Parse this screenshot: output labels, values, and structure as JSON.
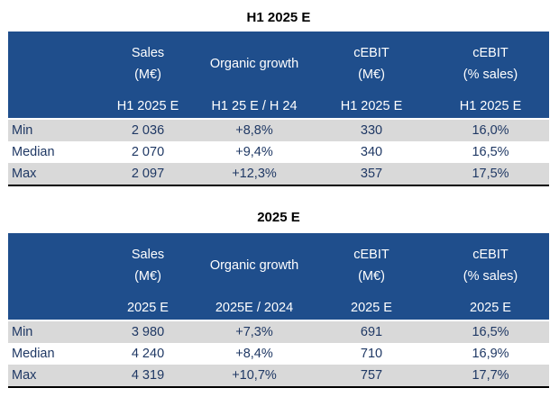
{
  "tables": [
    {
      "title": "H1 2025 E",
      "headers": {
        "sales_line1": "Sales",
        "sales_line2": "(M€)",
        "growth": "Organic growth",
        "cebit_line1": "cEBIT",
        "cebit_line2": "(M€)",
        "cebit_pct_line1": "cEBIT",
        "cebit_pct_line2": "(% sales)"
      },
      "subheaders": [
        "H1 2025 E",
        "H1 25 E / H 24",
        "H1 2025 E",
        "H1 2025 E"
      ],
      "rows": [
        {
          "label": "Min",
          "sales": "2 036",
          "growth": "+8,8%",
          "cebit": "330",
          "cebit_pct": "16,0%"
        },
        {
          "label": "Median",
          "sales": "2 070",
          "growth": "+9,4%",
          "cebit": "340",
          "cebit_pct": "16,5%"
        },
        {
          "label": "Max",
          "sales": "2 097",
          "growth": "+12,3%",
          "cebit": "357",
          "cebit_pct": "17,5%"
        }
      ]
    },
    {
      "title": "2025 E",
      "headers": {
        "sales_line1": "Sales",
        "sales_line2": "(M€)",
        "growth": "Organic growth",
        "cebit_line1": "cEBIT",
        "cebit_line2": "(M€)",
        "cebit_pct_line1": "cEBIT",
        "cebit_pct_line2": "(% sales)"
      },
      "subheaders": [
        "2025 E",
        "2025E / 2024",
        "2025 E",
        "2025 E"
      ],
      "rows": [
        {
          "label": "Min",
          "sales": "3 980",
          "growth": "+7,3%",
          "cebit": "691",
          "cebit_pct": "16,5%"
        },
        {
          "label": "Median",
          "sales": "4 240",
          "growth": "+8,4%",
          "cebit": "710",
          "cebit_pct": "16,9%"
        },
        {
          "label": "Max",
          "sales": "4 319",
          "growth": "+10,7%",
          "cebit": "757",
          "cebit_pct": "17,7%"
        }
      ]
    }
  ],
  "colors": {
    "header_bg": "#1f4e8c",
    "header_text": "#ffffff",
    "body_text": "#1f3864",
    "shaded_row": "#d9d9d9"
  }
}
